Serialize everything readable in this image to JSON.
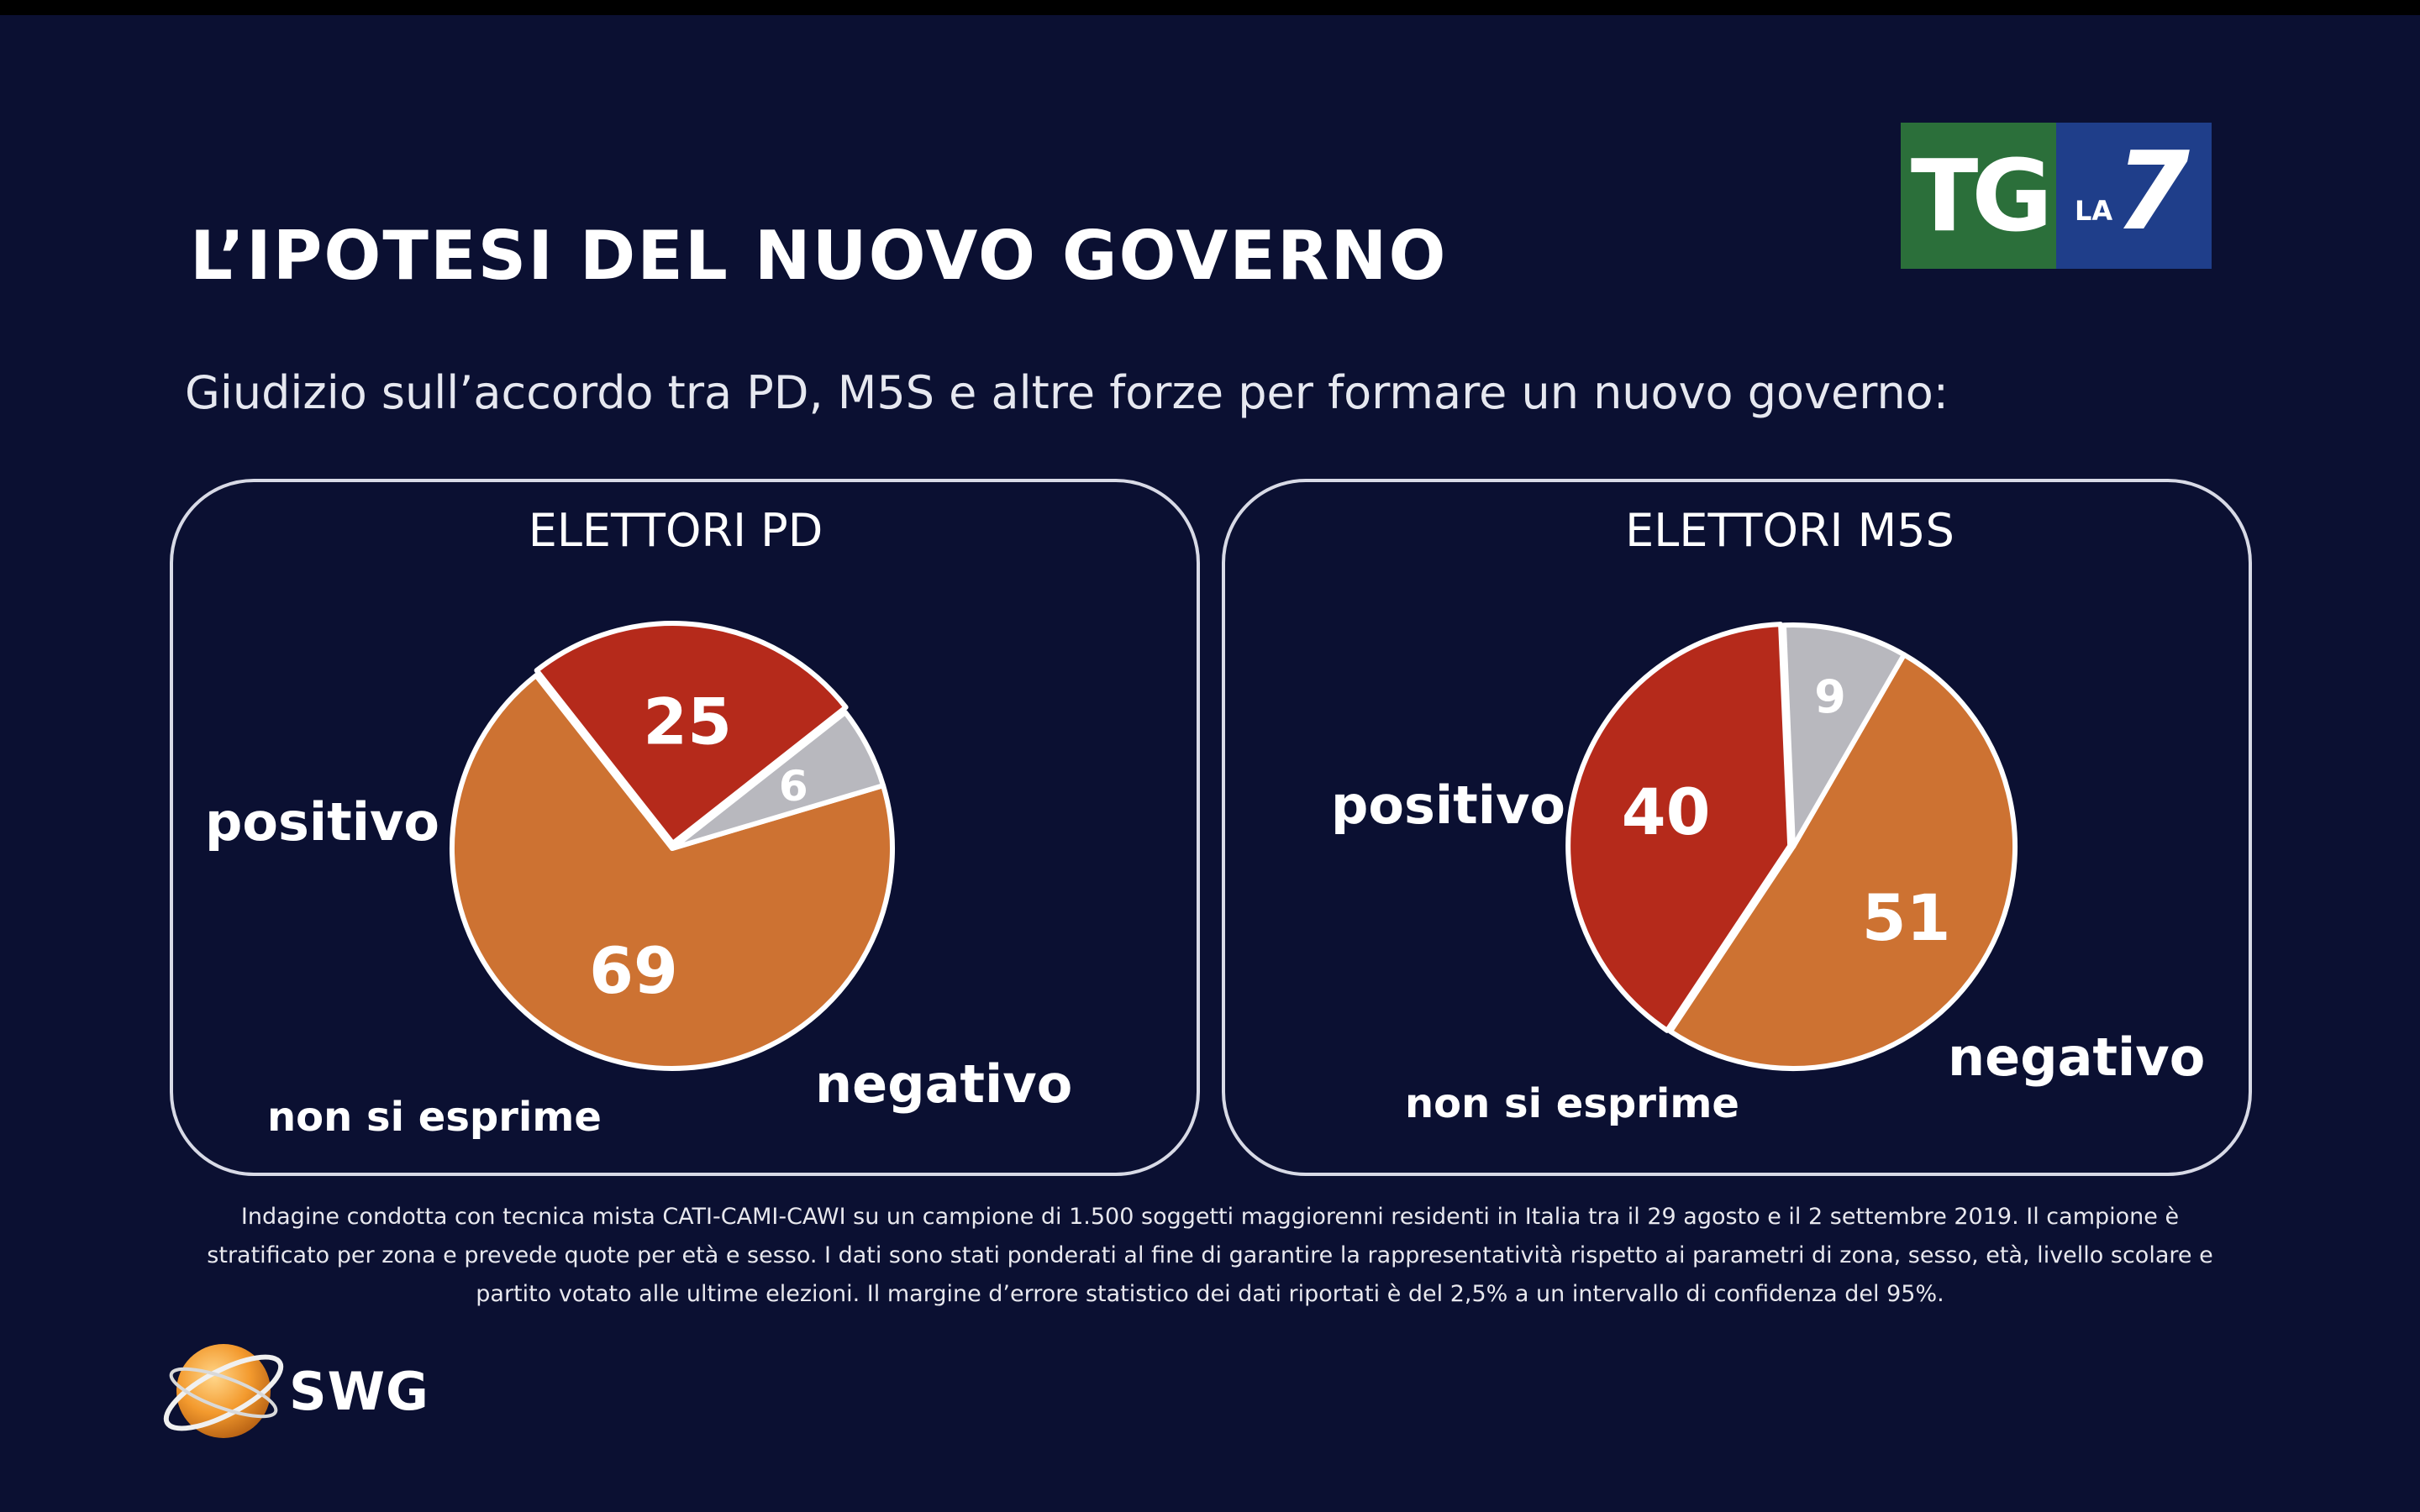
{
  "title": "L’IPOTESI DEL NUOVO GOVERNO",
  "subtitle": "Giudizio sull’accordo tra PD, M5S e altre forze per formare un nuovo governo:",
  "logo": {
    "tg": "TG",
    "la": "LA",
    "seven": "7"
  },
  "colors": {
    "background": "#0b1032",
    "positivo": "#cd7232",
    "negativo": "#b52a1b",
    "non_si_esprime": "#b8b8be"
  },
  "chart_data": [
    {
      "type": "pie",
      "title": "ELETTORI PD",
      "slices": [
        {
          "label": "positivo",
          "value": 69
        },
        {
          "label": "negativo",
          "value": 25
        },
        {
          "label": "non si esprime",
          "value": 6
        }
      ]
    },
    {
      "type": "pie",
      "title": "ELETTORI M5S",
      "slices": [
        {
          "label": "positivo",
          "value": 51
        },
        {
          "label": "negativo",
          "value": 40
        },
        {
          "label": "non si esprime",
          "value": 9
        }
      ]
    }
  ],
  "footnote": "Indagine condotta con tecnica mista CATI-CAMI-CAWI su un campione di 1.500 soggetti maggiorenni residenti in Italia tra il 29 agosto e il  2 settembre 2019. Il campione è stratificato per zona e prevede quote per età e sesso. I dati sono stati ponderati al fine di garantire la rappresentatività rispetto ai parametri di zona, sesso, età, livello scolare e partito votato alle ultime elezioni. Il margine d’errore statistico dei dati riportati è del 2,5% a un intervallo di confidenza del 95%.",
  "brand": "SWG"
}
